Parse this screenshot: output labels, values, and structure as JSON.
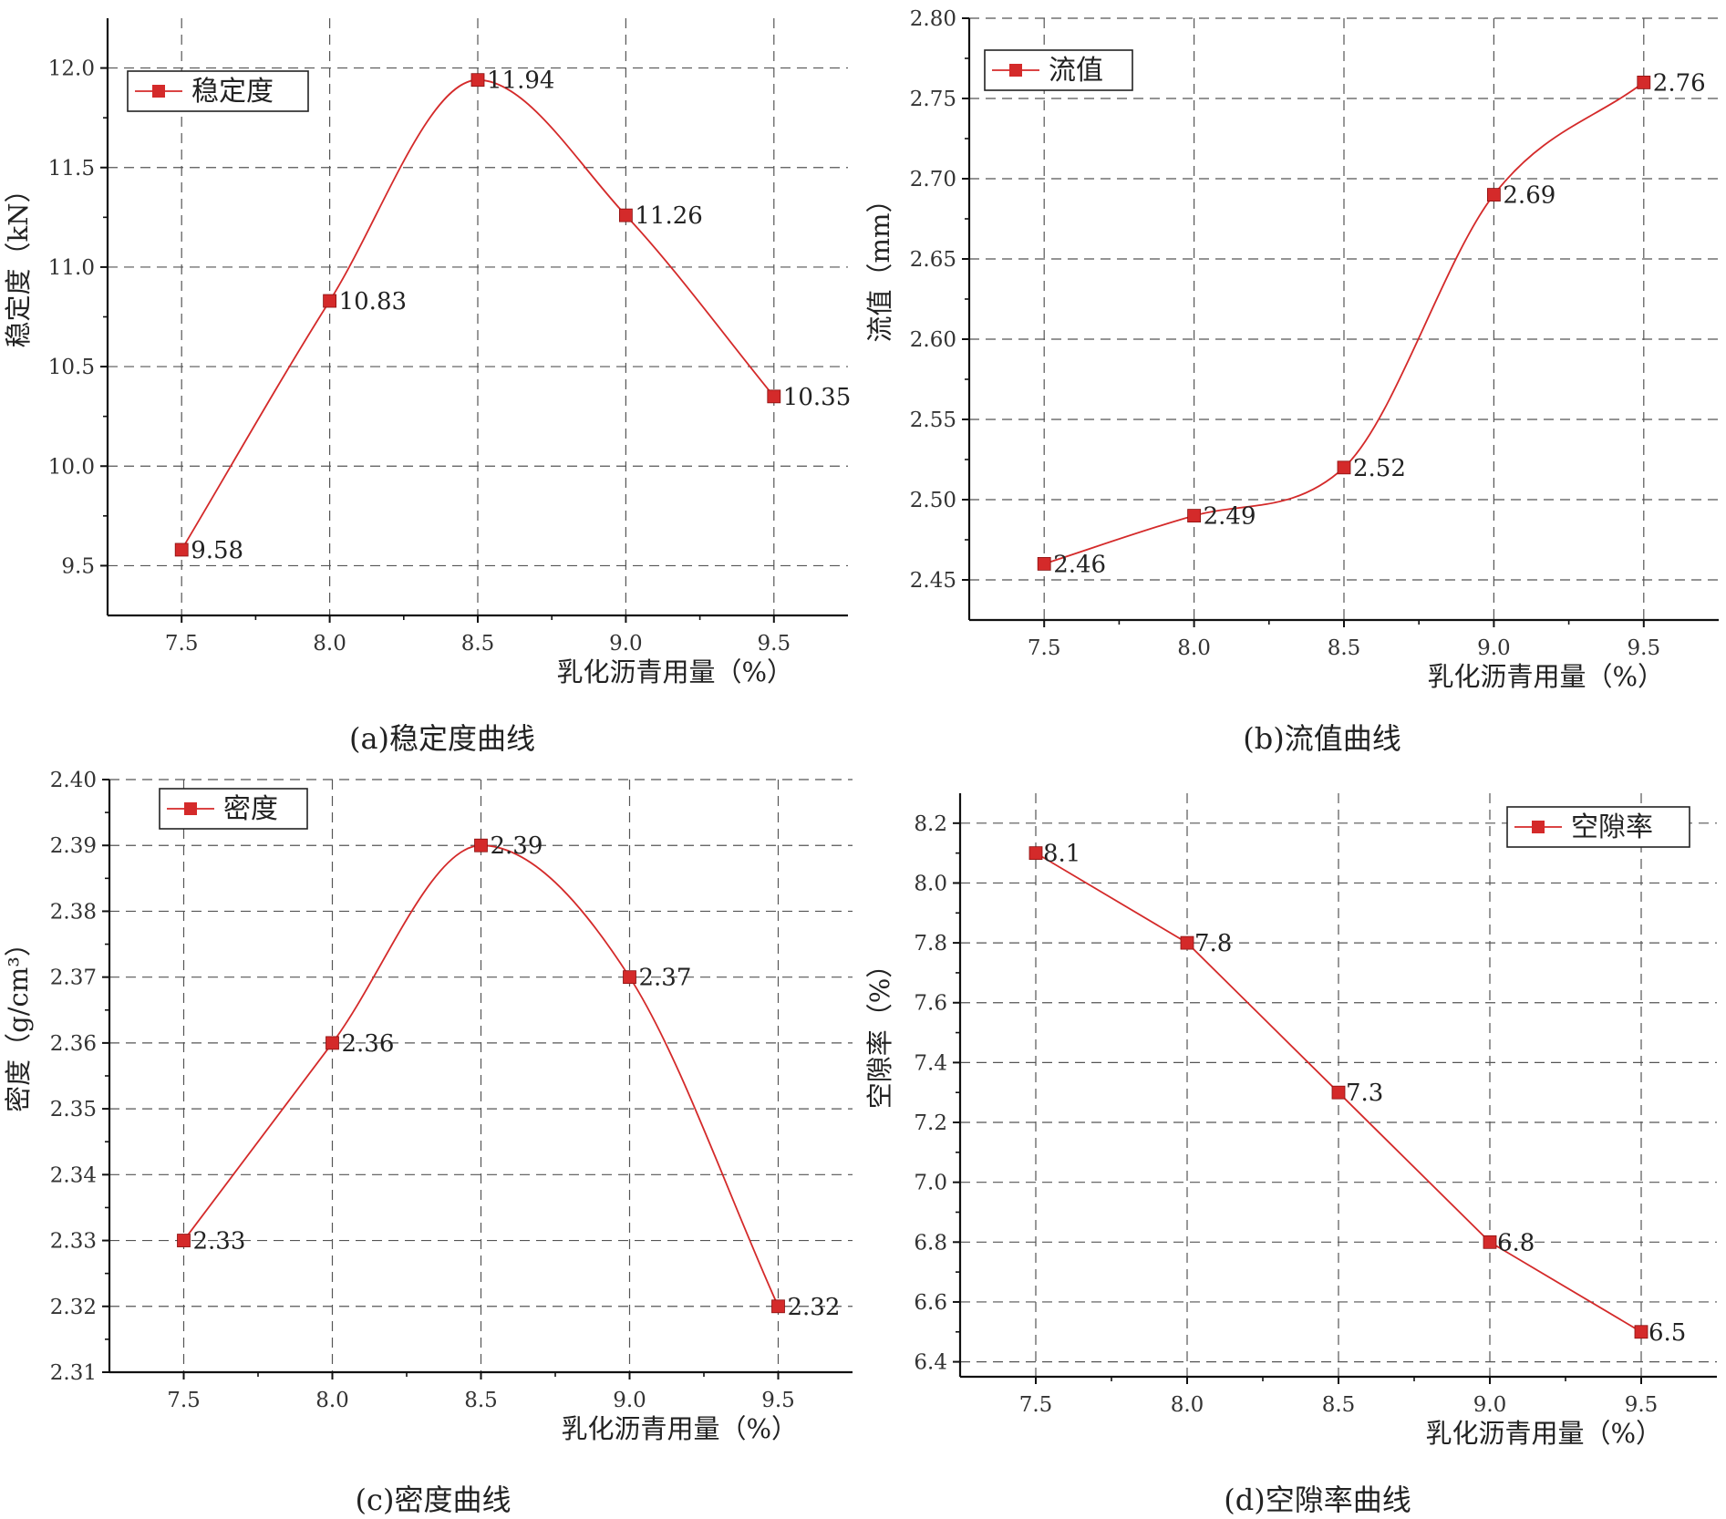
{
  "chart_data": [
    {
      "type": "line",
      "title": "",
      "xlabel": "乳化沥青用量（%）",
      "ylabel": "稳定度（kN）",
      "caption": "(a)稳定度曲线",
      "x": [
        7.5,
        8.0,
        8.5,
        9.0,
        9.5
      ],
      "x_ticks": [
        "7.5",
        "8.0",
        "8.5",
        "9.0",
        "9.5"
      ],
      "xlim": [
        7.25,
        9.75
      ],
      "y_ticks": [
        "9.5",
        "10.0",
        "10.5",
        "11.0",
        "11.5",
        "12.0"
      ],
      "ylim": [
        9.25,
        12.25
      ],
      "grid": true,
      "smooth": true,
      "legend_position": "top-left",
      "series": [
        {
          "name": "稳定度",
          "color": "#d42a2a",
          "values": [
            9.58,
            10.83,
            11.94,
            11.26,
            10.35
          ],
          "labels": [
            "9.58",
            "10.83",
            "11.94",
            "11.26",
            "10.35"
          ]
        }
      ]
    },
    {
      "type": "line",
      "title": "",
      "xlabel": "乳化沥青用量（%）",
      "ylabel": "流值（mm）",
      "caption": "(b)流值曲线",
      "x": [
        7.5,
        8.0,
        8.5,
        9.0,
        9.5
      ],
      "x_ticks": [
        "7.5",
        "8.0",
        "8.5",
        "9.0",
        "9.5"
      ],
      "xlim": [
        7.25,
        9.75
      ],
      "y_ticks": [
        "2.45",
        "2.50",
        "2.55",
        "2.60",
        "2.65",
        "2.70",
        "2.75",
        "2.80"
      ],
      "ylim": [
        2.425,
        2.8
      ],
      "grid": true,
      "smooth": true,
      "legend_position": "top-left",
      "series": [
        {
          "name": "流值",
          "color": "#d42a2a",
          "values": [
            2.46,
            2.49,
            2.52,
            2.69,
            2.76
          ],
          "labels": [
            "2.46",
            "2.49",
            "2.52",
            "2.69",
            "2.76"
          ]
        }
      ]
    },
    {
      "type": "line",
      "title": "",
      "xlabel": "乳化沥青用量（%）",
      "ylabel": "密度（g/cm³）",
      "caption": "(c)密度曲线",
      "x": [
        7.5,
        8.0,
        8.5,
        9.0,
        9.5
      ],
      "x_ticks": [
        "7.5",
        "8.0",
        "8.5",
        "9.0",
        "9.5"
      ],
      "xlim": [
        7.25,
        9.75
      ],
      "y_ticks": [
        "2.31",
        "2.32",
        "2.33",
        "2.34",
        "2.35",
        "2.36",
        "2.37",
        "2.38",
        "2.39",
        "2.40"
      ],
      "ylim": [
        2.31,
        2.4
      ],
      "grid": true,
      "smooth": true,
      "legend_position": "top-left",
      "series": [
        {
          "name": "密度",
          "color": "#d42a2a",
          "values": [
            2.33,
            2.36,
            2.39,
            2.37,
            2.32
          ],
          "labels": [
            "2.33",
            "2.36",
            "2.39",
            "2.37",
            "2.32"
          ]
        }
      ]
    },
    {
      "type": "line",
      "title": "",
      "xlabel": "乳化沥青用量（%）",
      "ylabel": "空隙率（%）",
      "caption": "(d)空隙率曲线",
      "x": [
        7.5,
        8.0,
        8.5,
        9.0,
        9.5
      ],
      "x_ticks": [
        "7.5",
        "8.0",
        "8.5",
        "9.0",
        "9.5"
      ],
      "xlim": [
        7.25,
        9.75
      ],
      "y_ticks": [
        "6.4",
        "6.6",
        "6.8",
        "7.0",
        "7.2",
        "7.4",
        "7.6",
        "7.8",
        "8.0",
        "8.2"
      ],
      "ylim": [
        6.35,
        8.3
      ],
      "grid": true,
      "smooth": false,
      "legend_position": "top-right",
      "series": [
        {
          "name": "空隙率",
          "color": "#d42a2a",
          "values": [
            8.1,
            7.8,
            7.3,
            6.8,
            6.5
          ],
          "labels": [
            "8.1",
            "7.8",
            "7.3",
            "6.8",
            "6.5"
          ]
        }
      ]
    }
  ]
}
